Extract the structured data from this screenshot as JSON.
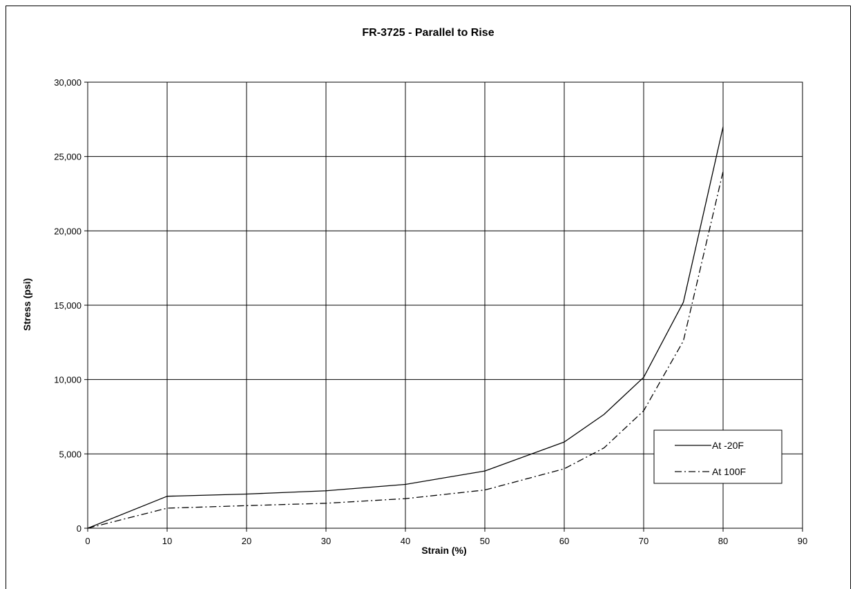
{
  "chart_data": {
    "type": "line",
    "title": "FR-3725 - Parallel to Rise",
    "xlabel": "Strain (%)",
    "ylabel": "Stress (psi)",
    "xlim": [
      0,
      90
    ],
    "ylim": [
      0,
      30000
    ],
    "x_ticks": [
      0,
      10,
      20,
      30,
      40,
      50,
      60,
      70,
      80,
      90
    ],
    "y_ticks": [
      0,
      5000,
      10000,
      15000,
      20000,
      25000,
      30000
    ],
    "x_tick_labels": [
      "0",
      "10",
      "20",
      "30",
      "40",
      "50",
      "60",
      "70",
      "80",
      "90"
    ],
    "y_tick_labels": [
      "0",
      "5,000",
      "10,000",
      "15,000",
      "20,000",
      "25,000",
      "30,000"
    ],
    "grid": true,
    "legend_position": "right",
    "series": [
      {
        "name": "At -20F",
        "style": "solid",
        "color": "#000000",
        "x": [
          0,
          10,
          20,
          30,
          40,
          50,
          60,
          65,
          70,
          75,
          80
        ],
        "y": [
          0,
          2150,
          2300,
          2520,
          2950,
          3850,
          5800,
          7650,
          10150,
          15200,
          27000
        ]
      },
      {
        "name": "At 100F",
        "style": "dash-dot",
        "color": "#000000",
        "x": [
          0,
          10,
          20,
          30,
          40,
          50,
          60,
          65,
          70,
          75,
          80
        ],
        "y": [
          0,
          1350,
          1520,
          1680,
          1990,
          2570,
          4000,
          5400,
          7900,
          12600,
          24000
        ]
      }
    ]
  }
}
